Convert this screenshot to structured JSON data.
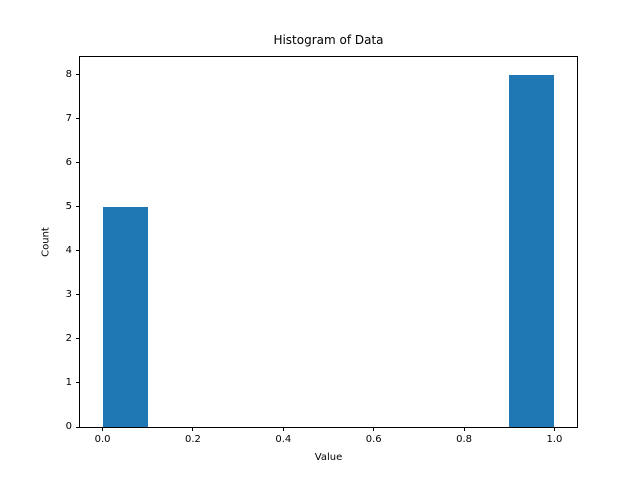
{
  "chart_data": {
    "type": "bar",
    "title": "Histogram of Data",
    "xlabel": "Value",
    "ylabel": "Count",
    "bar_color": "#1f77b4",
    "background_color": "#ffffff",
    "grid": false,
    "legend_position": null,
    "xlim": [
      -0.05,
      1.05
    ],
    "ylim": [
      0,
      8.4
    ],
    "bars": [
      {
        "x_start": 0.0,
        "x_end": 0.1,
        "count": 5
      },
      {
        "x_start": 0.9,
        "x_end": 1.0,
        "count": 8
      }
    ],
    "xticks": [
      {
        "value": 0.0,
        "label": "0.0"
      },
      {
        "value": 0.2,
        "label": "0.2"
      },
      {
        "value": 0.4,
        "label": "0.4"
      },
      {
        "value": 0.6,
        "label": "0.6"
      },
      {
        "value": 0.8,
        "label": "0.8"
      },
      {
        "value": 1.0,
        "label": "1.0"
      }
    ],
    "yticks": [
      {
        "value": 0,
        "label": "0"
      },
      {
        "value": 1,
        "label": "1"
      },
      {
        "value": 2,
        "label": "2"
      },
      {
        "value": 3,
        "label": "3"
      },
      {
        "value": 4,
        "label": "4"
      },
      {
        "value": 5,
        "label": "5"
      },
      {
        "value": 6,
        "label": "6"
      },
      {
        "value": 7,
        "label": "7"
      },
      {
        "value": 8,
        "label": "8"
      }
    ]
  }
}
